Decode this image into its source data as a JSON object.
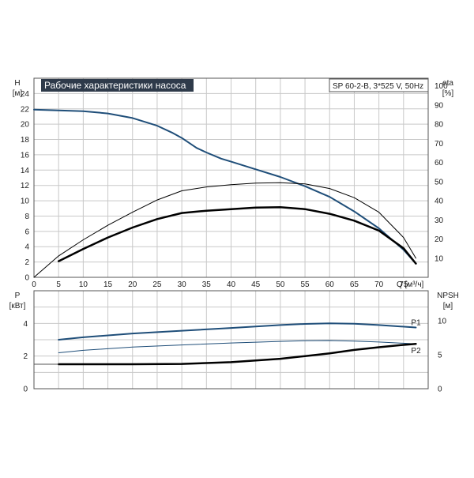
{
  "chart_data": [
    {
      "type": "line",
      "title": "Рабочие характеристики насоса",
      "subtitle": "SP 60-2-B, 3*525 V, 50Hz",
      "xlabel": "Q [м³/ч]",
      "ylabel_left": "H",
      "ylabel_left_unit": "[м]",
      "ylabel_right": "eta",
      "ylabel_right_unit": "[%]",
      "xlim": [
        0,
        80
      ],
      "ylim_left": [
        0,
        26
      ],
      "ylim_right": [
        0,
        104
      ],
      "x_ticks": [
        0,
        5,
        10,
        15,
        20,
        25,
        30,
        35,
        40,
        45,
        50,
        55,
        60,
        65,
        70,
        75
      ],
      "y_left_ticks": [
        0,
        2,
        4,
        6,
        8,
        10,
        12,
        14,
        16,
        18,
        20,
        22,
        24
      ],
      "y_right_ticks": [
        10,
        20,
        30,
        40,
        50,
        60,
        70,
        80,
        90,
        100
      ],
      "grid": true,
      "series": [
        {
          "axis": "left",
          "color": "#1f4e79",
          "width": 2,
          "points": [
            [
              0,
              21.9
            ],
            [
              5,
              21.8
            ],
            [
              10,
              21.7
            ],
            [
              15,
              21.4
            ],
            [
              20,
              20.8
            ],
            [
              25,
              19.8
            ],
            [
              28,
              18.9
            ],
            [
              30,
              18.2
            ],
            [
              33,
              16.9
            ],
            [
              35,
              16.3
            ],
            [
              38,
              15.5
            ],
            [
              40,
              15.1
            ],
            [
              45,
              14.1
            ],
            [
              50,
              13.1
            ],
            [
              55,
              11.9
            ],
            [
              60,
              10.5
            ],
            [
              65,
              8.6
            ],
            [
              70,
              6.4
            ],
            [
              75,
              3.6
            ],
            [
              77.5,
              1.8
            ]
          ]
        },
        {
          "axis": "left",
          "color": "#000000",
          "width": 1,
          "points": [
            [
              0,
              0
            ],
            [
              5,
              2.8
            ],
            [
              10,
              4.9
            ],
            [
              15,
              6.8
            ],
            [
              20,
              8.5
            ],
            [
              25,
              10.1
            ],
            [
              30,
              11.3
            ],
            [
              35,
              11.8
            ],
            [
              40,
              12.1
            ],
            [
              45,
              12.3
            ],
            [
              50,
              12.35
            ],
            [
              55,
              12.2
            ],
            [
              60,
              11.6
            ],
            [
              65,
              10.4
            ],
            [
              70,
              8.5
            ],
            [
              75,
              5.2
            ],
            [
              77.5,
              2.5
            ]
          ]
        },
        {
          "axis": "left",
          "color": "#000000",
          "width": 2.5,
          "points": [
            [
              5,
              2.1
            ],
            [
              10,
              3.7
            ],
            [
              15,
              5.2
            ],
            [
              20,
              6.5
            ],
            [
              25,
              7.6
            ],
            [
              30,
              8.4
            ],
            [
              35,
              8.7
            ],
            [
              40,
              8.9
            ],
            [
              45,
              9.1
            ],
            [
              50,
              9.15
            ],
            [
              55,
              8.9
            ],
            [
              60,
              8.3
            ],
            [
              65,
              7.4
            ],
            [
              70,
              6.1
            ],
            [
              75,
              3.8
            ],
            [
              77.5,
              1.8
            ]
          ]
        }
      ]
    },
    {
      "type": "line",
      "xlabel": "",
      "ylabel_left": "P",
      "ylabel_left_unit": "[кВт]",
      "ylabel_right": "NPSH",
      "ylabel_right_unit": "[м]",
      "xlim": [
        0,
        80
      ],
      "ylim_left": [
        0,
        6
      ],
      "ylim_right": [
        0,
        14.4
      ],
      "y_left_ticks": [
        0,
        2,
        4
      ],
      "y_right_ticks": [
        0,
        5,
        10
      ],
      "grid": true,
      "series": [
        {
          "name": "P1",
          "axis": "left",
          "color": "#1f4e79",
          "width": 2,
          "points": [
            [
              5,
              3.0
            ],
            [
              10,
              3.15
            ],
            [
              20,
              3.38
            ],
            [
              30,
              3.55
            ],
            [
              40,
              3.72
            ],
            [
              50,
              3.9
            ],
            [
              55,
              3.97
            ],
            [
              60,
              4.0
            ],
            [
              65,
              3.98
            ],
            [
              70,
              3.9
            ],
            [
              77.5,
              3.75
            ]
          ]
        },
        {
          "name": "P2",
          "axis": "left",
          "color": "#1f4e79",
          "width": 1,
          "points": [
            [
              5,
              2.2
            ],
            [
              10,
              2.35
            ],
            [
              20,
              2.55
            ],
            [
              30,
              2.68
            ],
            [
              40,
              2.8
            ],
            [
              50,
              2.9
            ],
            [
              55,
              2.94
            ],
            [
              60,
              2.95
            ],
            [
              65,
              2.92
            ],
            [
              70,
              2.86
            ],
            [
              77.5,
              2.75
            ]
          ]
        },
        {
          "axis": "right",
          "color": "#000000",
          "width": 2.5,
          "points": [
            [
              5,
              3.6
            ],
            [
              10,
              3.6
            ],
            [
              20,
              3.6
            ],
            [
              30,
              3.65
            ],
            [
              40,
              3.9
            ],
            [
              50,
              4.4
            ],
            [
              55,
              4.8
            ],
            [
              60,
              5.2
            ],
            [
              65,
              5.7
            ],
            [
              70,
              6.1
            ],
            [
              75,
              6.45
            ],
            [
              77.5,
              6.6
            ]
          ]
        }
      ]
    }
  ]
}
